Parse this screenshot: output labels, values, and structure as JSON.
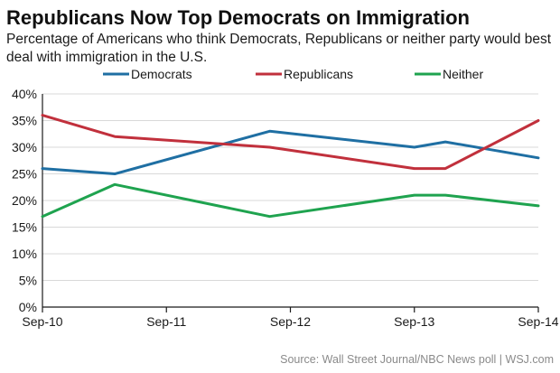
{
  "title": "Republicans Now Top Democrats on Immigration",
  "subtitle": "Percentage of Americans who think Democrats, Republicans or neither party would best deal with immigration in the U.S.",
  "source": "Source: Wall Street Journal/NBC News poll  |  WSJ.com",
  "colors": {
    "Democrats": "#1f6fa3",
    "Republicans": "#c1303c",
    "Neither": "#1fa34f",
    "axis": "#1a1a1a",
    "grid": "#d9d9d9"
  },
  "chart_data": {
    "type": "line",
    "title": "Republicans Now Top Democrats on Immigration",
    "xlabel": "",
    "ylabel": "",
    "x_ticks": [
      "Sep-10",
      "Sep-11",
      "Sep-12",
      "Sep-13",
      "Sep-14"
    ],
    "y_ticks": [
      "0%",
      "5%",
      "10%",
      "15%",
      "20%",
      "25%",
      "30%",
      "35%",
      "40%"
    ],
    "ylim": [
      0,
      40
    ],
    "xlim": [
      "2010-09",
      "2014-09"
    ],
    "grid": "horizontal",
    "legend": "top",
    "series": [
      {
        "name": "Democrats",
        "points": [
          {
            "x": "2010-09",
            "y": 26
          },
          {
            "x": "2011-04",
            "y": 25
          },
          {
            "x": "2012-07",
            "y": 33
          },
          {
            "x": "2013-09",
            "y": 30
          },
          {
            "x": "2013-12",
            "y": 31
          },
          {
            "x": "2014-09",
            "y": 28
          }
        ]
      },
      {
        "name": "Republicans",
        "points": [
          {
            "x": "2010-09",
            "y": 36
          },
          {
            "x": "2011-04",
            "y": 32
          },
          {
            "x": "2012-07",
            "y": 30
          },
          {
            "x": "2013-09",
            "y": 26
          },
          {
            "x": "2013-12",
            "y": 26
          },
          {
            "x": "2014-09",
            "y": 35
          }
        ]
      },
      {
        "name": "Neither",
        "points": [
          {
            "x": "2010-09",
            "y": 17
          },
          {
            "x": "2011-04",
            "y": 23
          },
          {
            "x": "2012-07",
            "y": 17
          },
          {
            "x": "2013-09",
            "y": 21
          },
          {
            "x": "2013-12",
            "y": 21
          },
          {
            "x": "2014-09",
            "y": 19
          }
        ]
      }
    ]
  }
}
